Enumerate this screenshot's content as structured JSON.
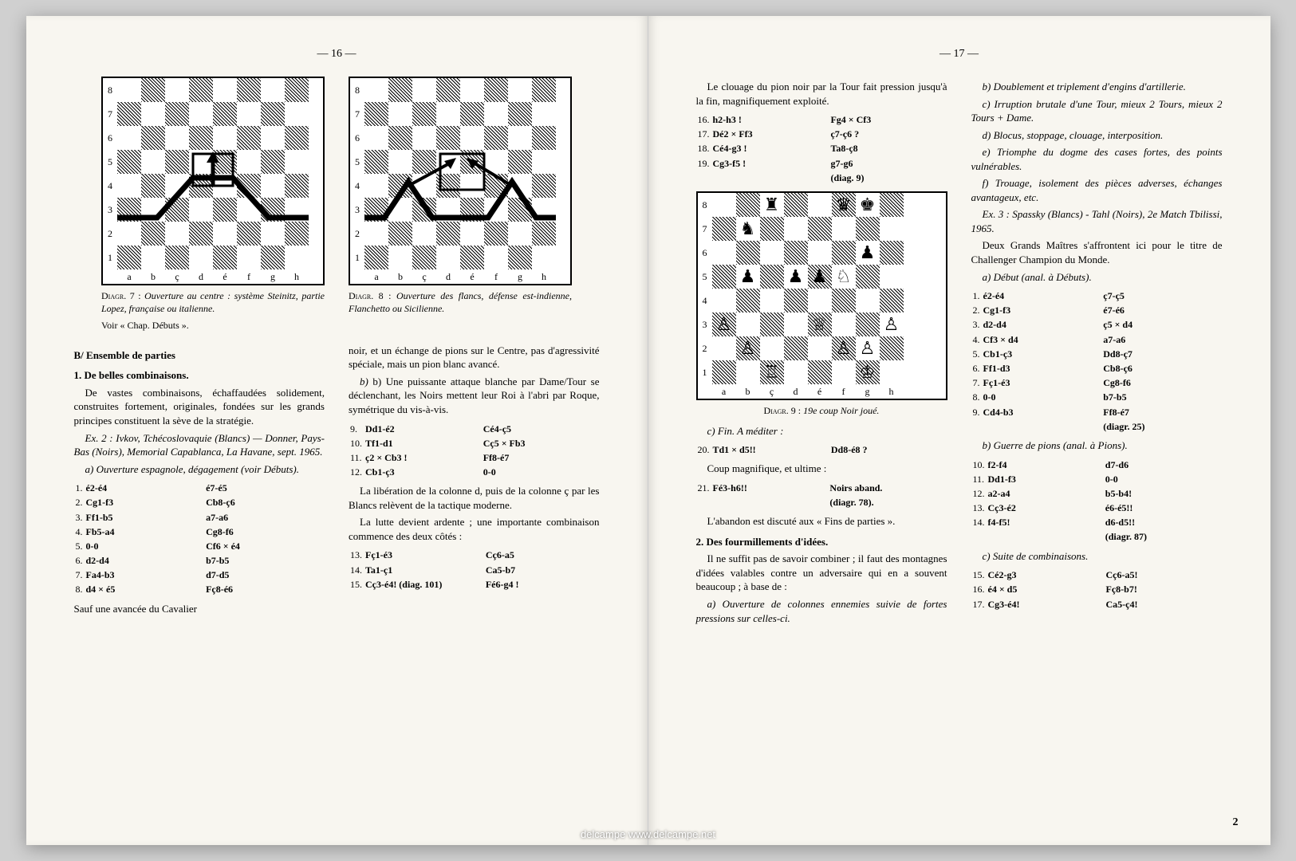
{
  "pages": {
    "left_num": "— 16 —",
    "right_num": "— 17 —",
    "corner_num": "2"
  },
  "watermark": "delcampe   www.delcampe.net",
  "diag7": {
    "caption_title": "Diagr. 7 :",
    "caption_text": " Ouverture au centre : système Steinitz, partie Lopez, française ou italienne.",
    "caption_after": "Voir « Chap. Débuts ».",
    "files": [
      "a",
      "b",
      "ç",
      "d",
      "é",
      "f",
      "g",
      "h"
    ],
    "ranks": [
      "8",
      "7",
      "6",
      "5",
      "4",
      "3",
      "2",
      "1"
    ]
  },
  "diag8": {
    "caption_title": "Diagr. 8 :",
    "caption_text": " Ouverture des flancs, défense est-indienne, Flanchetto ou Sicilienne.",
    "files": [
      "a",
      "b",
      "ç",
      "d",
      "é",
      "f",
      "g",
      "h"
    ],
    "ranks": [
      "8",
      "7",
      "6",
      "5",
      "4",
      "3",
      "2",
      "1"
    ]
  },
  "diag9": {
    "caption_title": "Diagr. 9 :",
    "caption_text": " 19e coup Noir joué.",
    "files": [
      "a",
      "b",
      "ç",
      "d",
      "é",
      "f",
      "g",
      "h"
    ],
    "ranks": [
      "8",
      "7",
      "6",
      "5",
      "4",
      "3",
      "2",
      "1"
    ],
    "position": {
      "8": [
        "",
        "",
        "♜",
        "",
        "",
        "♛",
        "♚",
        ""
      ],
      "7": [
        "",
        "♞",
        "",
        "",
        "",
        "",
        "",
        ""
      ],
      "6": [
        "",
        "",
        "",
        "",
        "",
        "",
        "♟",
        ""
      ],
      "5": [
        "",
        "♟",
        "",
        "♟",
        "♟",
        "♘",
        "",
        ""
      ],
      "4": [
        "",
        "",
        "",
        "",
        "",
        "",
        "",
        ""
      ],
      "3": [
        "♙",
        "",
        "",
        "",
        "♕",
        "",
        "",
        "♙"
      ],
      "2": [
        "",
        "♙",
        "",
        "",
        "",
        "♙",
        "♙",
        ""
      ],
      "1": [
        "",
        "",
        "♖",
        "",
        "",
        "",
        "♔",
        ""
      ]
    }
  },
  "left": {
    "B_heading": "B/ Ensemble de parties",
    "sub1": "1. De belles combinaisons.",
    "p1": "De vastes combinaisons, échaffaudées solidement, construites fortement, originales, fondées sur les grands principes constituent la sève de la stratégie.",
    "ex2": "Ex. 2 : Ivkov, Tchécoslovaquie (Blancs) — Donner, Pays-Bas (Noirs), Memorial Capablanca, La Havane, sept. 1965.",
    "sub_a": "a) Ouverture espagnole, dégagement (voir Débuts).",
    "moves_a": [
      [
        "1.",
        "é2-é4",
        "é7-é5"
      ],
      [
        "2.",
        "Cg1-f3",
        "Cb8-ç6"
      ],
      [
        "3.",
        "Ff1-b5",
        "a7-a6"
      ],
      [
        "4.",
        "Fb5-a4",
        "Cg8-f6"
      ],
      [
        "5.",
        "0-0",
        "Cf6 × é4"
      ],
      [
        "6.",
        "d2-d4",
        "b7-b5"
      ],
      [
        "7.",
        "Fa4-b3",
        "d7-d5"
      ],
      [
        "8.",
        "d4 × é5",
        "Fç8-é6"
      ]
    ],
    "p_after_a": "Sauf une avancée du Cavalier",
    "col2_p1": "noir, et un échange de pions sur le Centre, pas d'agressivité spéciale, mais un pion blanc avancé.",
    "sub_b": "b) Une puissante attaque blanche par Dame/Tour se déclenchant, les Noirs mettent leur Roi à l'abri par Roque, symétrique du vis-à-vis.",
    "moves_b": [
      [
        "9.",
        "Dd1-é2",
        "Cé4-ç5"
      ],
      [
        "10.",
        "Tf1-d1",
        "Cç5 × Fb3"
      ],
      [
        "11.",
        "ç2 × Cb3 !",
        "Ff8-é7"
      ],
      [
        "12.",
        "Cb1-ç3",
        "0-0"
      ]
    ],
    "p_after_b": "La libération de la colonne d, puis de la colonne ç par les Blancs relèvent de la tactique moderne.",
    "p_after_b2": "La lutte devient ardente ; une importante combinaison commence des deux côtés :",
    "moves_c": [
      [
        "13.",
        "Fç1-é3",
        "Cç6-a5"
      ],
      [
        "14.",
        "Ta1-ç1",
        "Ca5-b7"
      ],
      [
        "15.",
        "Cç3-é4! (diag. 101)",
        "Fé6-g4 !"
      ]
    ]
  },
  "right": {
    "col1_p1": "Le clouage du pion noir par la Tour fait pression jusqu'à la fin, magnifiquement exploité.",
    "moves_pin": [
      [
        "16.",
        "h2-h3 !",
        "Fg4 × Cf3"
      ],
      [
        "17.",
        "Dé2 × Ff3",
        "ç7-ç6 ?"
      ],
      [
        "18.",
        "Cé4-g3 !",
        "Ta8-ç8"
      ],
      [
        "19.",
        "Cg3-f5 !",
        "g7-g6"
      ],
      [
        "",
        "",
        "(diag. 9)"
      ]
    ],
    "sub_c": "c) Fin. A méditer :",
    "moves_fin": [
      [
        "20.",
        "Td1 × d5!!",
        "Dd8-é8 ?"
      ]
    ],
    "p_coup": "Coup magnifique, et ultime :",
    "moves_fin2": [
      [
        "21.",
        "Fé3-h6!!",
        "Noirs aband."
      ],
      [
        "",
        "",
        "(diagr. 78)."
      ]
    ],
    "p_abandon": "L'abandon est discuté aux « Fins de parties ».",
    "sub2": "2. Des fourmillements d'idées.",
    "p_fourm": "Il ne suffit pas de savoir combiner ; il faut des montagnes d'idées valables contre un adversaire qui en a souvent beaucoup ; à base de :",
    "sub_a2": "a) Ouverture de colonnes ennemies suivie de fortes pressions sur celles-ci.",
    "col2_b": "b) Doublement et triplement d'engins d'artillerie.",
    "col2_c": "c) Irruption brutale d'une Tour, mieux 2 Tours, mieux 2 Tours + Dame.",
    "col2_d": "d) Blocus, stoppage, clouage, interposition.",
    "col2_e": "e) Triomphe du dogme des cases fortes, des points vulnérables.",
    "col2_f": "f) Trouage, isolement des pièces adverses, échanges avantageux, etc.",
    "ex3": "Ex. 3 : Spassky (Blancs) - Tahl (Noirs), 2e Match Tbilissi, 1965.",
    "p_gm": "Deux Grands Maîtres s'affrontent ici pour le titre de Challenger Champion du Monde.",
    "sub_debut": "a) Début (anal. à Débuts).",
    "moves_debut": [
      [
        "1.",
        "é2-é4",
        "ç7-ç5"
      ],
      [
        "2.",
        "Cg1-f3",
        "é7-é6"
      ],
      [
        "3.",
        "d2-d4",
        "ç5 × d4"
      ],
      [
        "4.",
        "Cf3 × d4",
        "a7-a6"
      ],
      [
        "5.",
        "Cb1-ç3",
        "Dd8-ç7"
      ],
      [
        "6.",
        "Ff1-d3",
        "Cb8-ç6"
      ],
      [
        "7.",
        "Fç1-é3",
        "Cg8-f6"
      ],
      [
        "8.",
        "0-0",
        "b7-b5"
      ],
      [
        "9.",
        "Cd4-b3",
        "Ff8-é7"
      ],
      [
        "",
        "",
        "(diagr. 25)"
      ]
    ],
    "sub_guerre": "b) Guerre de pions (anal. à Pions).",
    "moves_guerre": [
      [
        "10.",
        "f2-f4",
        "d7-d6"
      ],
      [
        "11.",
        "Dd1-f3",
        "0-0"
      ],
      [
        "12.",
        "a2-a4",
        "b5-b4!"
      ],
      [
        "13.",
        "Cç3-é2",
        "é6-é5!!"
      ],
      [
        "14.",
        "f4-f5!",
        "d6-d5!!"
      ],
      [
        "",
        "",
        "(diagr. 87)"
      ]
    ],
    "sub_suite": "c) Suite de combinaisons.",
    "moves_suite": [
      [
        "15.",
        "Cé2-g3",
        "Cç6-a5!"
      ],
      [
        "16.",
        "é4 × d5",
        "Fç8-b7!"
      ],
      [
        "17.",
        "Cg3-é4!",
        "Ca5-ç4!"
      ]
    ]
  }
}
